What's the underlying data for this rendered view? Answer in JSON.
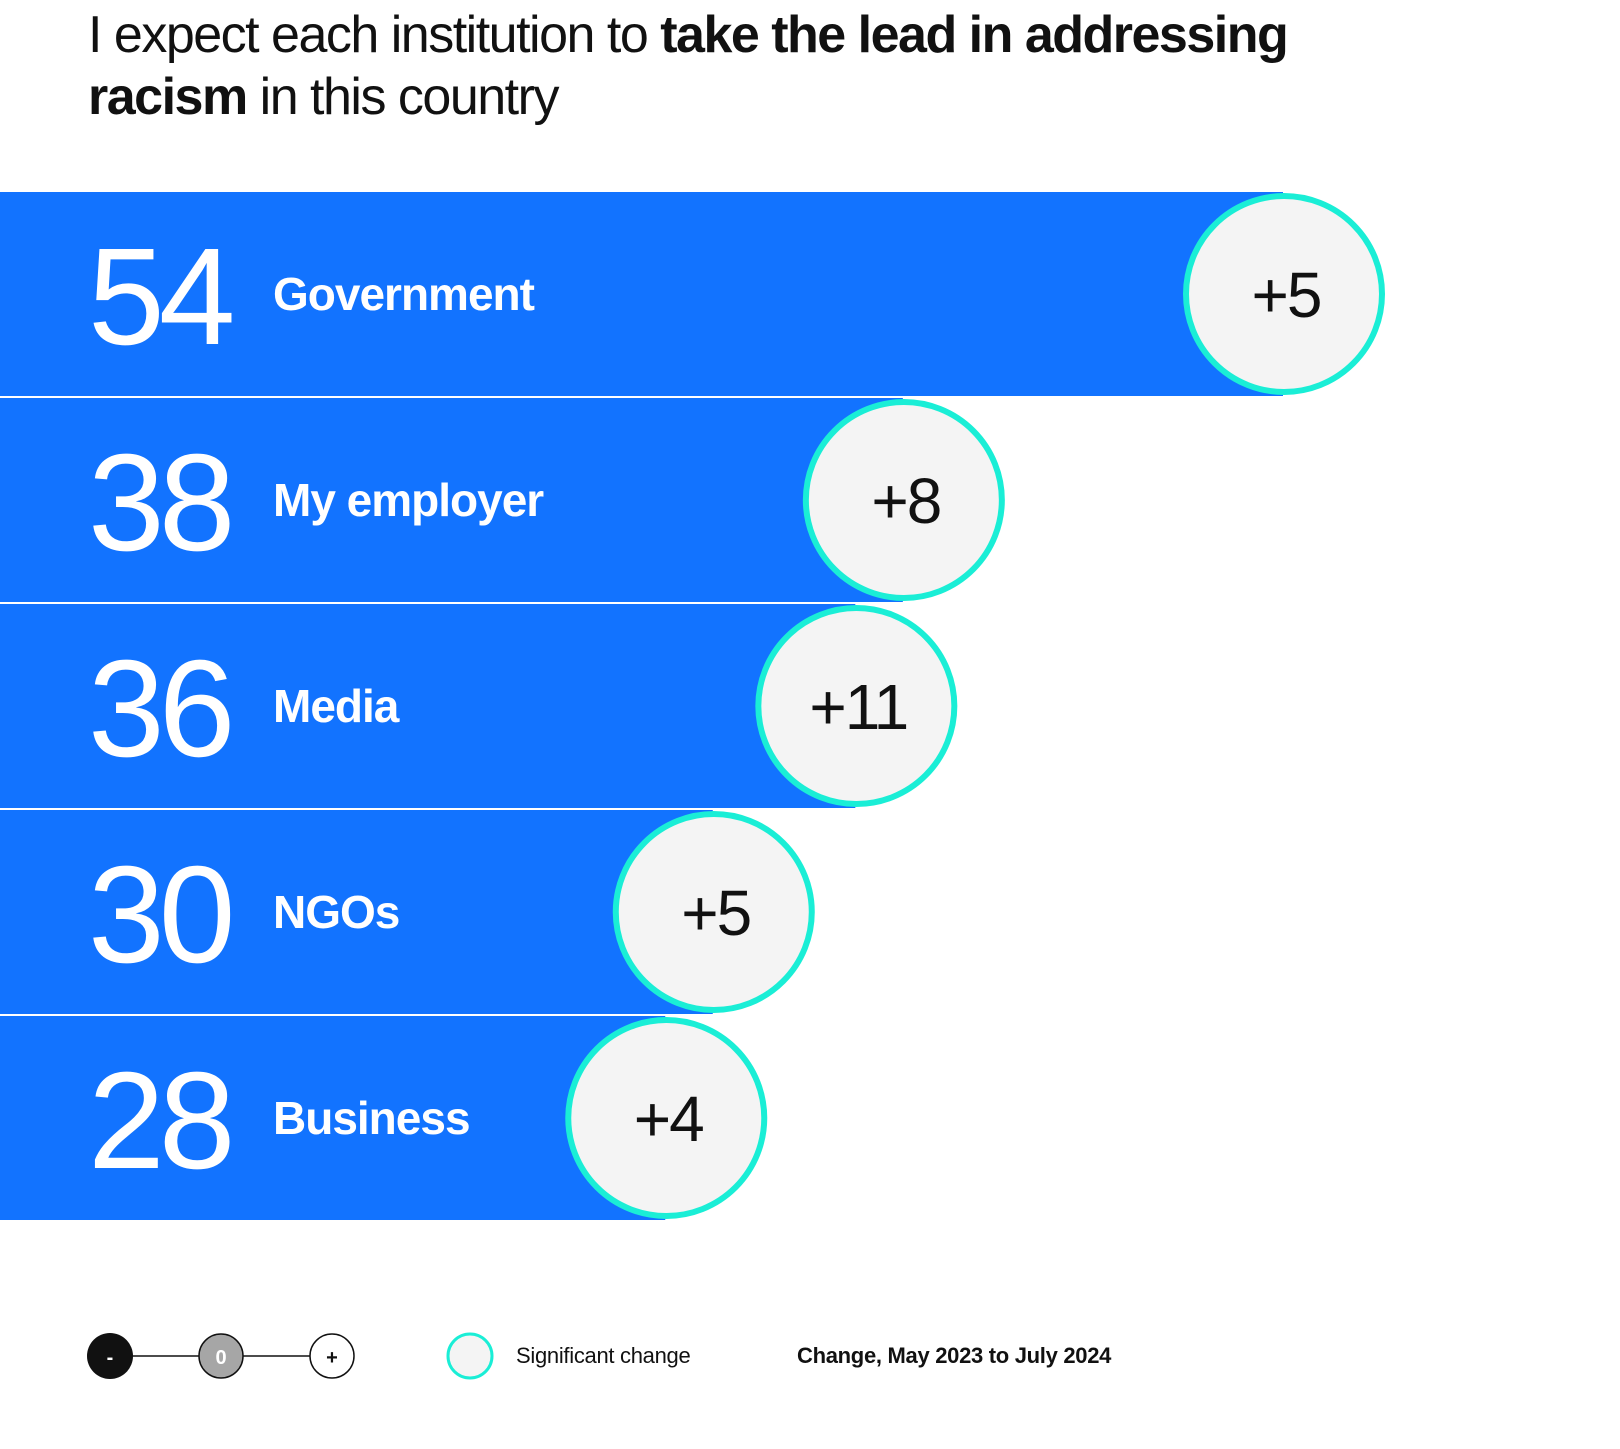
{
  "title": {
    "part1": "I expect each institution to ",
    "bold": "take the lead in addressing racism",
    "part2": " in this country"
  },
  "colors": {
    "bar": "#1273FF",
    "significant_ring": "#1AEED6",
    "bubble_fill": "#F4F4F4",
    "negative_dot": "#111111",
    "neutral_dot": "#A6A6A6"
  },
  "chart_data": {
    "type": "bar",
    "orientation": "horizontal",
    "categories": [
      "Government",
      "My employer",
      "Media",
      "NGOs",
      "Business"
    ],
    "values": [
      54,
      38,
      36,
      30,
      28
    ],
    "changes": [
      "+5",
      "+8",
      "+11",
      "+5",
      "+4"
    ],
    "significant": [
      true,
      true,
      true,
      true,
      true
    ],
    "xlim": [
      0,
      54
    ],
    "grid": false
  },
  "legend": {
    "negative": "-",
    "neutral": "0",
    "positive": "+",
    "significant_label": "Significant change",
    "period_label": "Change, May 2023 to July 2024"
  }
}
